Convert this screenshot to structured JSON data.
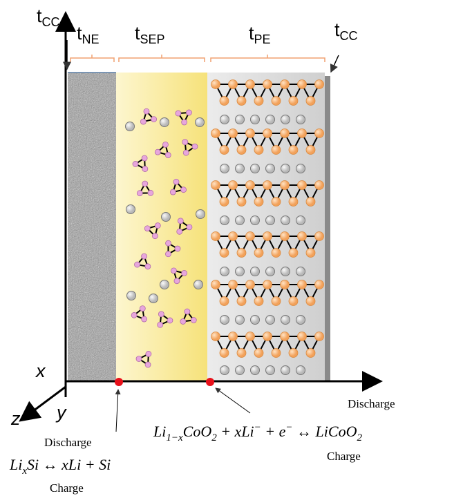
{
  "thickness_labels": [
    {
      "base": "t",
      "sub": "CC"
    },
    {
      "base": "t",
      "sub": "NE"
    },
    {
      "base": "t",
      "sub": "SEP"
    },
    {
      "base": "t",
      "sub": "PE"
    },
    {
      "base": "t",
      "sub": "CC"
    }
  ],
  "axes": {
    "x": "x",
    "y": "y",
    "z": "z"
  },
  "positive_electrode": {
    "discharge": "Discharge",
    "charge": "Charge",
    "equation": [
      {
        "text": "Li"
      },
      {
        "sub": "1−x"
      },
      {
        "text": "CoO"
      },
      {
        "sub": "2"
      },
      {
        "text": " + xLi"
      },
      {
        "sup": "−"
      },
      {
        "text": " + e"
      },
      {
        "sup": "−"
      },
      {
        "text": " ↔ LiCoO"
      },
      {
        "sub": "2"
      }
    ]
  },
  "negative_electrode": {
    "discharge": "Discharge",
    "charge": "Charge",
    "equation": [
      {
        "text": "Li"
      },
      {
        "sub": "x"
      },
      {
        "text": "Si ↔ xLi + Si"
      }
    ]
  }
}
